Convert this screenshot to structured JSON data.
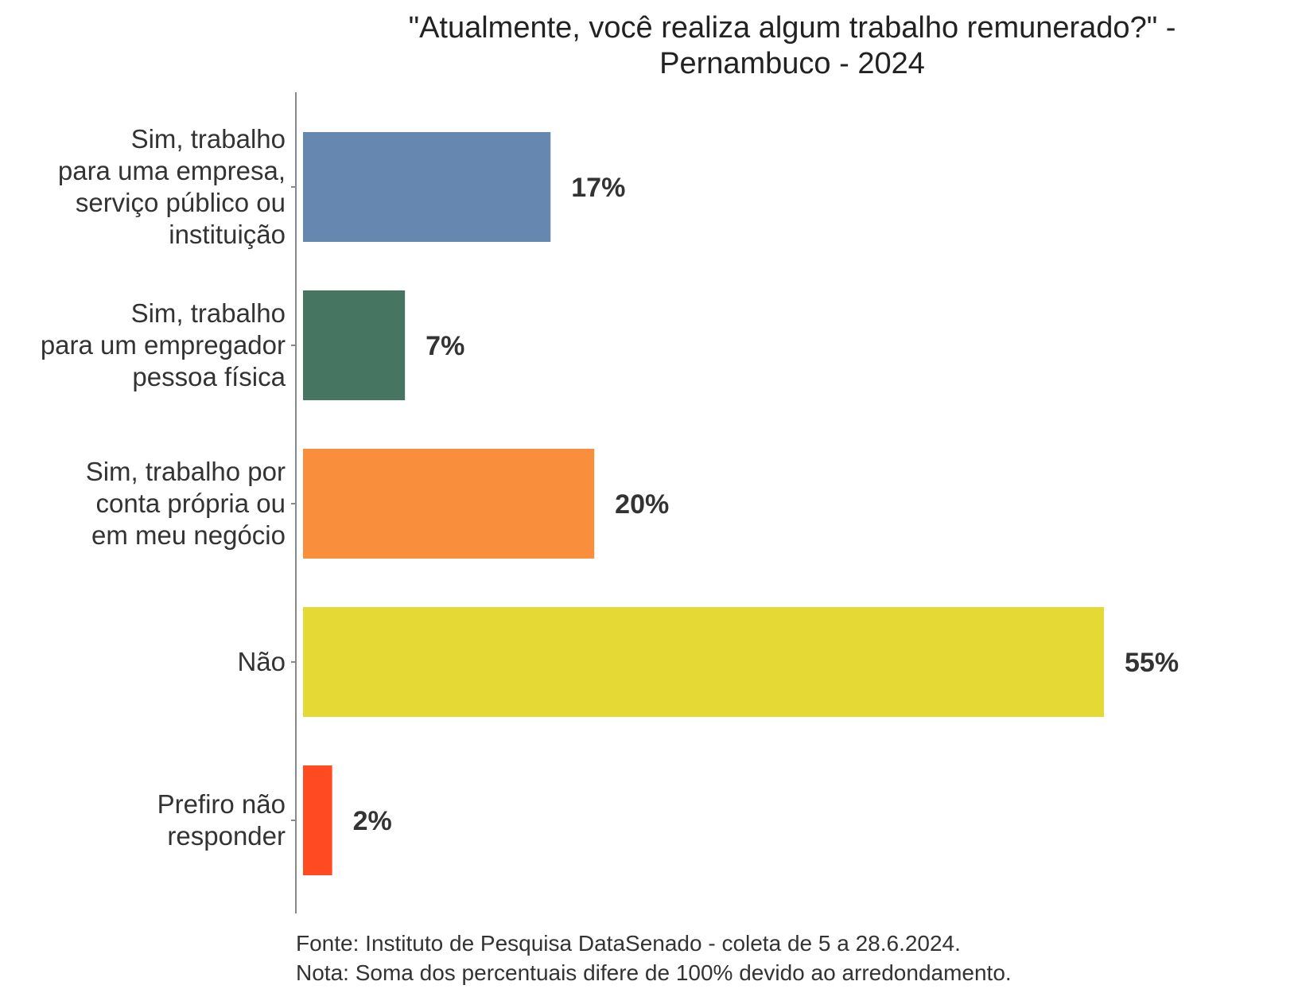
{
  "chart_data": {
    "type": "bar",
    "orientation": "horizontal",
    "title": "\"Atualmente, você realiza algum trabalho remunerado?\" - Pernambuco - 2024",
    "title_lines": [
      "\"Atualmente, você realiza algum trabalho remunerado?\" -",
      "Pernambuco - 2024"
    ],
    "categories": [
      "Sim, trabalho para uma empresa, serviço público ou instituição",
      "Sim, trabalho para um empregador pessoa física",
      "Sim, trabalho por conta própria ou em meu negócio",
      "Não",
      "Prefiro não responder"
    ],
    "category_lines": [
      [
        "Sim, trabalho",
        "para uma empresa,",
        "serviço público ou",
        "instituição"
      ],
      [
        "Sim, trabalho",
        "para um empregador",
        "pessoa física"
      ],
      [
        "Sim, trabalho por",
        "conta própria ou",
        "em meu negócio"
      ],
      [
        "Não"
      ],
      [
        "Prefiro não",
        "responder"
      ]
    ],
    "values": [
      17,
      7,
      20,
      55,
      2
    ],
    "value_labels": [
      "17%",
      "7%",
      "20%",
      "55%",
      "2%"
    ],
    "colors": [
      "#6688b0",
      "#467562",
      "#f98f3c",
      "#e4d935",
      "#ff4a22"
    ],
    "xlim": [
      0,
      55
    ],
    "grid": false,
    "legend": "none",
    "xlabel": "",
    "ylabel": ""
  },
  "caption": {
    "source": "Fonte: Instituto de Pesquisa DataSenado - coleta de 5 a 28.6.2024.",
    "note": "Nota: Soma dos percentuais difere de 100% devido ao arredondamento."
  }
}
